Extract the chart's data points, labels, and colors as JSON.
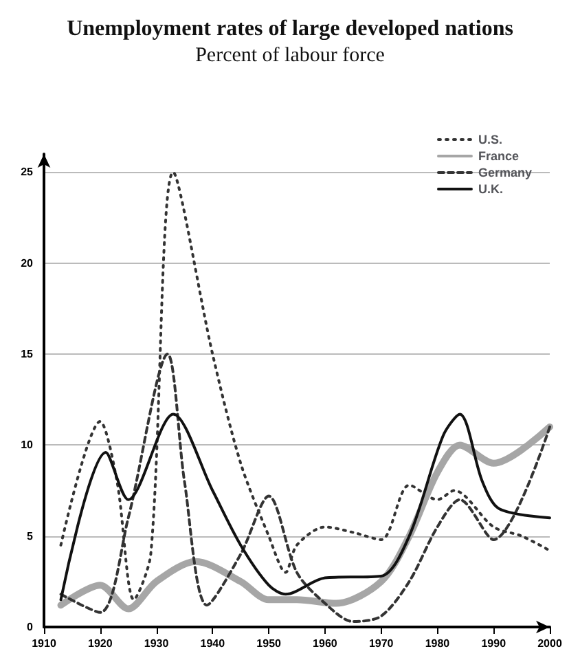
{
  "chart_data": {
    "type": "line",
    "title": "Unemployment rates of large developed nations",
    "subtitle": "Percent of labour force",
    "xlim": [
      1910,
      2000
    ],
    "xticks": [
      1910,
      1920,
      1930,
      1940,
      1950,
      1960,
      1970,
      1980,
      1990,
      2000
    ],
    "ylim": [
      0,
      26
    ],
    "yticks": [
      0,
      5,
      10,
      15,
      20,
      25
    ],
    "grid": "y",
    "legend": "top right",
    "marker": "none",
    "series": [
      {
        "name": "U.S.",
        "color": "#333333",
        "line_style": "dotted",
        "x": [
          1913,
          1920,
          1923,
          1926,
          1929,
          1933,
          1940,
          1945,
          1950,
          1953,
          1955,
          1960,
          1965,
          1970,
          1975,
          1980,
          1983,
          1990,
          1995,
          2000
        ],
        "values": [
          4.5,
          11.3,
          8,
          1.5,
          4,
          25,
          15,
          9,
          5,
          3,
          4.5,
          5.5,
          5.2,
          4.8,
          7.8,
          7,
          7.5,
          5.5,
          5,
          4.2
        ]
      },
      {
        "name": "France",
        "color": "#a6a6a6",
        "line_style": "solid",
        "x": [
          1913,
          1920,
          1925,
          1930,
          1937,
          1945,
          1950,
          1955,
          1962,
          1970,
          1975,
          1980,
          1984,
          1990,
          2000
        ],
        "values": [
          1.2,
          2.3,
          1,
          2.5,
          3.6,
          2.5,
          1.5,
          1.5,
          1.3,
          2.5,
          5,
          8.5,
          10,
          9,
          11
        ]
      },
      {
        "name": "Germany",
        "color": "#333333",
        "line_style": "dashed",
        "x": [
          1913,
          1920,
          1925,
          1932,
          1935,
          1939,
          1945,
          1950,
          1955,
          1960,
          1965,
          1970,
          1975,
          1980,
          1984,
          1990,
          2000
        ],
        "values": [
          1.8,
          0.8,
          6,
          15,
          8,
          1.2,
          4,
          7.2,
          3,
          1.3,
          0.3,
          0.6,
          2.5,
          5.5,
          7,
          4.8,
          11
        ]
      },
      {
        "name": "U.K.",
        "color": "#111111",
        "line_style": "solid",
        "x": [
          1913,
          1921,
          1925,
          1933,
          1940,
          1945,
          1950,
          1953,
          1960,
          1970,
          1975,
          1981,
          1984,
          1988,
          1991,
          2000
        ],
        "values": [
          1.5,
          9.6,
          7,
          11.7,
          7.5,
          4.5,
          2.3,
          1.8,
          2.7,
          2.8,
          5,
          10.5,
          11.7,
          8,
          6.5,
          6
        ]
      }
    ]
  }
}
